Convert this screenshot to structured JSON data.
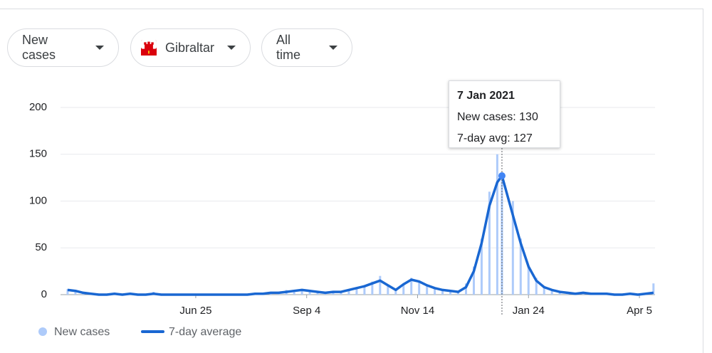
{
  "controls": [
    "New cases",
    "Gibraltar",
    "All time"
  ],
  "chart_data": {
    "type": "bar-line",
    "x": [
      "2020-04-04",
      "2020-04-09",
      "2020-04-14",
      "2020-04-19",
      "2020-04-24",
      "2020-04-29",
      "2020-05-04",
      "2020-05-09",
      "2020-05-14",
      "2020-05-19",
      "2020-05-24",
      "2020-05-29",
      "2020-06-03",
      "2020-06-08",
      "2020-06-13",
      "2020-06-18",
      "2020-06-23",
      "2020-06-28",
      "2020-07-03",
      "2020-07-08",
      "2020-07-13",
      "2020-07-18",
      "2020-07-23",
      "2020-07-28",
      "2020-08-02",
      "2020-08-07",
      "2020-08-12",
      "2020-08-17",
      "2020-08-22",
      "2020-08-27",
      "2020-09-01",
      "2020-09-06",
      "2020-09-11",
      "2020-09-16",
      "2020-09-21",
      "2020-09-26",
      "2020-10-01",
      "2020-10-06",
      "2020-10-11",
      "2020-10-16",
      "2020-10-21",
      "2020-10-26",
      "2020-10-31",
      "2020-11-05",
      "2020-11-10",
      "2020-11-15",
      "2020-11-20",
      "2020-11-25",
      "2020-11-30",
      "2020-12-05",
      "2020-12-10",
      "2020-12-15",
      "2020-12-20",
      "2020-12-25",
      "2020-12-30",
      "2021-01-04",
      "2021-01-07",
      "2021-01-14",
      "2021-01-19",
      "2021-01-24",
      "2021-01-29",
      "2021-02-03",
      "2021-02-08",
      "2021-02-13",
      "2021-02-18",
      "2021-02-23",
      "2021-02-28",
      "2021-03-05",
      "2021-03-10",
      "2021-03-15",
      "2021-03-20",
      "2021-03-25",
      "2021-03-30",
      "2021-04-04",
      "2021-04-09",
      "2021-04-14"
    ],
    "series": [
      {
        "name": "New cases",
        "color": "#aecbfa",
        "values": [
          6,
          4,
          2,
          0,
          1,
          0,
          2,
          0,
          1,
          0,
          0,
          3,
          0,
          0,
          0,
          0,
          0,
          0,
          0,
          0,
          0,
          0,
          1,
          0,
          2,
          1,
          3,
          2,
          5,
          4,
          6,
          4,
          3,
          2,
          4,
          3,
          6,
          8,
          10,
          14,
          20,
          9,
          4,
          12,
          18,
          13,
          9,
          6,
          5,
          4,
          3,
          12,
          30,
          60,
          110,
          150,
          130,
          100,
          60,
          30,
          18,
          8,
          5,
          3,
          2,
          1,
          3,
          1,
          2,
          0,
          1,
          0,
          1,
          0,
          1,
          12
        ]
      },
      {
        "name": "7-day average",
        "color": "#1967d2",
        "values": [
          5,
          4,
          2,
          1,
          0,
          0,
          1,
          0,
          1,
          0,
          0,
          1,
          0,
          0,
          0,
          0,
          0,
          0,
          0,
          0,
          0,
          0,
          0,
          0,
          1,
          1,
          2,
          2,
          3,
          4,
          5,
          4,
          3,
          2,
          3,
          3,
          5,
          7,
          9,
          12,
          15,
          10,
          5,
          11,
          16,
          14,
          10,
          7,
          5,
          4,
          3,
          8,
          25,
          55,
          95,
          120,
          127,
          85,
          55,
          30,
          15,
          8,
          5,
          3,
          2,
          1,
          2,
          1,
          1,
          1,
          0,
          0,
          1,
          0,
          1,
          2
        ]
      }
    ],
    "xlim": [
      "2020-04-04",
      "2021-04-15"
    ],
    "xticks": [
      {
        "value": "2020-06-25",
        "label": "Jun 25"
      },
      {
        "value": "2020-09-04",
        "label": "Sep 4"
      },
      {
        "value": "2020-11-14",
        "label": "Nov 14"
      },
      {
        "value": "2021-01-24",
        "label": "Jan 24"
      },
      {
        "value": "2021-04-05",
        "label": "Apr 5"
      }
    ],
    "ylim": [
      0,
      200
    ],
    "yticks": [
      0,
      50,
      100,
      150,
      200
    ],
    "grid": true,
    "legend": "bottom-left",
    "tooltip": {
      "title": "7 Jan 2021",
      "lines": [
        "New cases: 130",
        "7-day avg: 127"
      ]
    }
  }
}
